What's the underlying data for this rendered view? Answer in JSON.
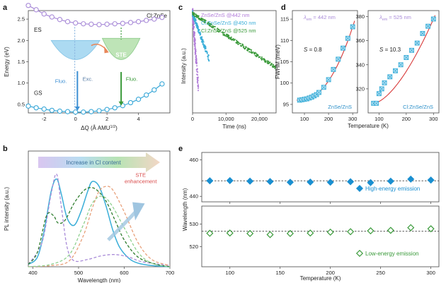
{
  "panels": {
    "a": "a",
    "b": "b",
    "c": "c",
    "d": "d",
    "e": "e"
  },
  "chart_data": [
    {
      "panel": "a",
      "type": "line",
      "corner_label": "Cl:ZnSe",
      "xlabel": "ΔQ (Å AMU",
      "xlabel_sup": "1/2",
      "xlabel_close": ")",
      "ylabel": "Energy (eV)",
      "xlim": [
        -3,
        6
      ],
      "ylim": [
        0.3,
        2.7
      ],
      "xticks": [
        -2,
        0,
        2,
        4
      ],
      "yticks": [
        0.5,
        1.0,
        1.5,
        2.0,
        2.5
      ],
      "series": [
        {
          "name": "ES",
          "color": "#a98bd8",
          "x": [
            -3,
            -2.5,
            -2,
            -1.5,
            -1,
            -0.5,
            0,
            0.5,
            1,
            1.5,
            2,
            2.5,
            3,
            3.5,
            4,
            4.5,
            5,
            5.5
          ],
          "values": [
            2.82,
            2.72,
            2.62,
            2.55,
            2.49,
            2.44,
            2.41,
            2.39,
            2.38,
            2.37,
            2.38,
            2.39,
            2.4,
            2.42,
            2.44,
            2.47,
            2.5,
            2.54
          ]
        },
        {
          "name": "GS",
          "color": "#3aa8d8",
          "x": [
            -3,
            -2.5,
            -2,
            -1.5,
            -1,
            -0.5,
            0,
            0.5,
            1,
            1.5,
            2,
            2.5,
            3,
            3.5,
            4,
            4.5,
            5,
            5.5
          ],
          "values": [
            0.46,
            0.42,
            0.39,
            0.36,
            0.34,
            0.33,
            0.32,
            0.32,
            0.33,
            0.35,
            0.38,
            0.42,
            0.47,
            0.54,
            0.62,
            0.72,
            0.84,
            0.98
          ]
        }
      ],
      "annotations": {
        "exc": "Exc.",
        "fluo_left": "Fluo.",
        "fluo_right": "Fluo.",
        "ste": "STE"
      },
      "arrow_colors": {
        "exc": "#8bb6e0",
        "fluo_left": "#3c8fd4",
        "fluo_right": "#3a9a3a",
        "transfer": "#e8875a"
      }
    },
    {
      "panel": "b",
      "type": "line",
      "xlabel": "Wavelength (nm)",
      "ylabel": "PL intensity (a.u.)",
      "xlim": [
        390,
        700
      ],
      "xticks": [
        400,
        500,
        600,
        700
      ],
      "banner": "Increase in Cl content",
      "annotation": "STE\nenhancement",
      "annotation_lines": [
        "STE",
        "enhancement"
      ],
      "annotation_color": "#d94a4a",
      "series": [
        {
          "style": "solid",
          "color": "#3aaed8",
          "x": [
            390,
            410,
            425,
            440,
            452,
            462,
            475,
            490,
            505,
            520,
            530,
            545,
            560,
            575,
            590,
            610,
            630,
            660,
            700
          ],
          "values": [
            0.02,
            0.08,
            0.3,
            0.62,
            0.72,
            0.6,
            0.4,
            0.34,
            0.45,
            0.62,
            0.7,
            0.66,
            0.5,
            0.3,
            0.16,
            0.07,
            0.03,
            0.01,
            0
          ]
        },
        {
          "style": "dashed",
          "color": "#a98bd8",
          "x": [
            390,
            420,
            440,
            452,
            462,
            475,
            490,
            520,
            550,
            580,
            610,
            640,
            700
          ],
          "values": [
            0.02,
            0.2,
            0.6,
            0.76,
            0.5,
            0.16,
            0.05,
            0.06,
            0.09,
            0.1,
            0.08,
            0.04,
            0.01
          ]
        },
        {
          "style": "dashed",
          "color": "#2e7d2e",
          "x": [
            390,
            410,
            430,
            445,
            455,
            470,
            490,
            510,
            525,
            540,
            560,
            580,
            600,
            630,
            670,
            700
          ],
          "values": [
            0.02,
            0.12,
            0.42,
            0.42,
            0.36,
            0.38,
            0.52,
            0.62,
            0.65,
            0.63,
            0.54,
            0.38,
            0.22,
            0.08,
            0.02,
            0
          ]
        },
        {
          "style": "dashed",
          "color": "#e8a07a",
          "x": [
            390,
            440,
            480,
            510,
            530,
            545,
            560,
            575,
            600,
            630,
            660,
            700
          ],
          "values": [
            0,
            0.01,
            0.05,
            0.25,
            0.48,
            0.62,
            0.66,
            0.63,
            0.45,
            0.2,
            0.06,
            0.01
          ]
        },
        {
          "style": "dashed",
          "color": "#8ed08e",
          "x": [
            390,
            440,
            480,
            510,
            530,
            550,
            570,
            600,
            630,
            660,
            700
          ],
          "values": [
            0,
            0.02,
            0.1,
            0.34,
            0.52,
            0.58,
            0.52,
            0.32,
            0.12,
            0.03,
            0
          ]
        }
      ]
    },
    {
      "panel": "c",
      "type": "scatter",
      "xlabel": "Time (ns)",
      "ylabel": "Intensity (a.u.)",
      "xlim": [
        0,
        25000
      ],
      "xticks": [
        0,
        10000,
        20000
      ],
      "xticklabels": [
        "0",
        "10,000",
        "20,000"
      ],
      "log_y": true,
      "series": [
        {
          "name": "ZnSe/ZnS @442 nm",
          "color": "#b07ad8",
          "tau": 300
        },
        {
          "name": "Cl:ZnSe/ZnS @450 nm",
          "color": "#3aaed8",
          "tau": 1000
        },
        {
          "name": "Cl:ZnSe/ZnS @525 nm",
          "color": "#3a9a3a",
          "tau": 6500
        }
      ]
    },
    {
      "panel": "d",
      "type": "scatter",
      "subplots": [
        {
          "lambda_label": "λ",
          "lambda_sub": "em",
          "lambda_value": " = 442 nm",
          "S_label": "S",
          "S_value": " = 0.8",
          "sample": "ZnSe/ZnS",
          "ylabel": "FWHM (meV)",
          "xlim": [
            50,
            320
          ],
          "ylim": [
            93,
            117
          ],
          "xticks": [
            100,
            200,
            300
          ],
          "yticks": [
            95,
            100,
            105,
            110,
            115
          ],
          "x": [
            80,
            90,
            100,
            110,
            120,
            130,
            140,
            150,
            160,
            180,
            200,
            220,
            240,
            260,
            280,
            300
          ],
          "values": [
            96.0,
            96.1,
            96.2,
            96.3,
            96.5,
            96.7,
            97.0,
            97.3,
            97.8,
            99.0,
            100.8,
            103.2,
            105.6,
            108.2,
            110.5,
            113.2
          ]
        },
        {
          "lambda_label": "λ",
          "lambda_sub": "em",
          "lambda_value": " = 525 nm",
          "S_label": "S",
          "S_value": " = 10.3",
          "sample": "Cl:ZnSe/ZnS",
          "xlim": [
            60,
            320
          ],
          "ylim": [
            300,
            385
          ],
          "xticks": [
            100,
            200,
            300
          ],
          "yticks": [
            320,
            340,
            360,
            380
          ],
          "x": [
            80,
            90,
            100,
            110,
            120,
            140,
            160,
            180,
            200,
            220,
            240,
            260,
            280,
            300
          ],
          "values": [
            308,
            308,
            316,
            320,
            325,
            330,
            335,
            340,
            346,
            352,
            358,
            366,
            372,
            378
          ]
        }
      ],
      "xlabel": "Temperature (K)",
      "marker_color": "#3aaed8"
    },
    {
      "panel": "e",
      "type": "scatter",
      "xlabel": "Temperature (K)",
      "ylabel": "Wavelength (nm)",
      "xlim": [
        72,
        308
      ],
      "xticks": [
        100,
        150,
        200,
        250,
        300
      ],
      "subplots": [
        {
          "name": "High-energy emission",
          "marker": "filled-diamond",
          "color": "#1a8fd0",
          "ylim": [
            437,
            464
          ],
          "yticks": [
            440,
            460
          ],
          "ref": 448.5,
          "x": [
            80,
            100,
            120,
            140,
            160,
            180,
            200,
            220,
            240,
            260,
            280,
            300
          ],
          "values": [
            448.5,
            448.6,
            448.3,
            448.1,
            447.7,
            447.8,
            447.7,
            448.0,
            447.5,
            448.3,
            449.4,
            448.9
          ]
        },
        {
          "name": "Low-energy emission",
          "marker": "open-diamond",
          "color": "#3a9a3a",
          "ylim": [
            511,
            538
          ],
          "yticks": [
            520,
            530
          ],
          "ref": 526.8,
          "x": [
            80,
            100,
            120,
            140,
            160,
            180,
            200,
            220,
            240,
            260,
            280,
            300
          ],
          "values": [
            525.9,
            526.0,
            525.8,
            525.3,
            525.8,
            526.0,
            526.4,
            526.6,
            527.0,
            527.2,
            528.4,
            527.9
          ]
        }
      ]
    }
  ]
}
